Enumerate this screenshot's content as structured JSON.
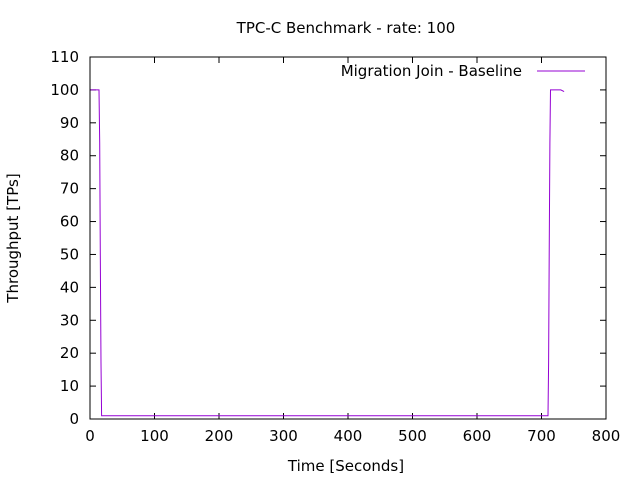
{
  "chart_data": {
    "type": "line",
    "title": "TPC-C Benchmark - rate: 100",
    "xlabel": "Time [Seconds]",
    "ylabel": "Throughput [TPs]",
    "xlim": [
      0,
      800
    ],
    "ylim": [
      0,
      110
    ],
    "xticks": [
      0,
      100,
      200,
      300,
      400,
      500,
      600,
      700,
      800
    ],
    "yticks": [
      0,
      10,
      20,
      30,
      40,
      50,
      60,
      70,
      80,
      90,
      100,
      110
    ],
    "grid": false,
    "legend_position": "top-right",
    "series": [
      {
        "name": "Migration Join - Baseline",
        "color": "#9400d3",
        "x": [
          0,
          14,
          15,
          16,
          17,
          18,
          19,
          700,
          710,
          711,
          712,
          713,
          714,
          715,
          720,
          725,
          730,
          735
        ],
        "y": [
          100,
          100,
          84,
          50,
          17,
          1,
          1,
          1,
          1,
          17,
          50,
          84,
          100,
          100,
          100,
          100,
          100,
          99.5
        ]
      }
    ]
  }
}
